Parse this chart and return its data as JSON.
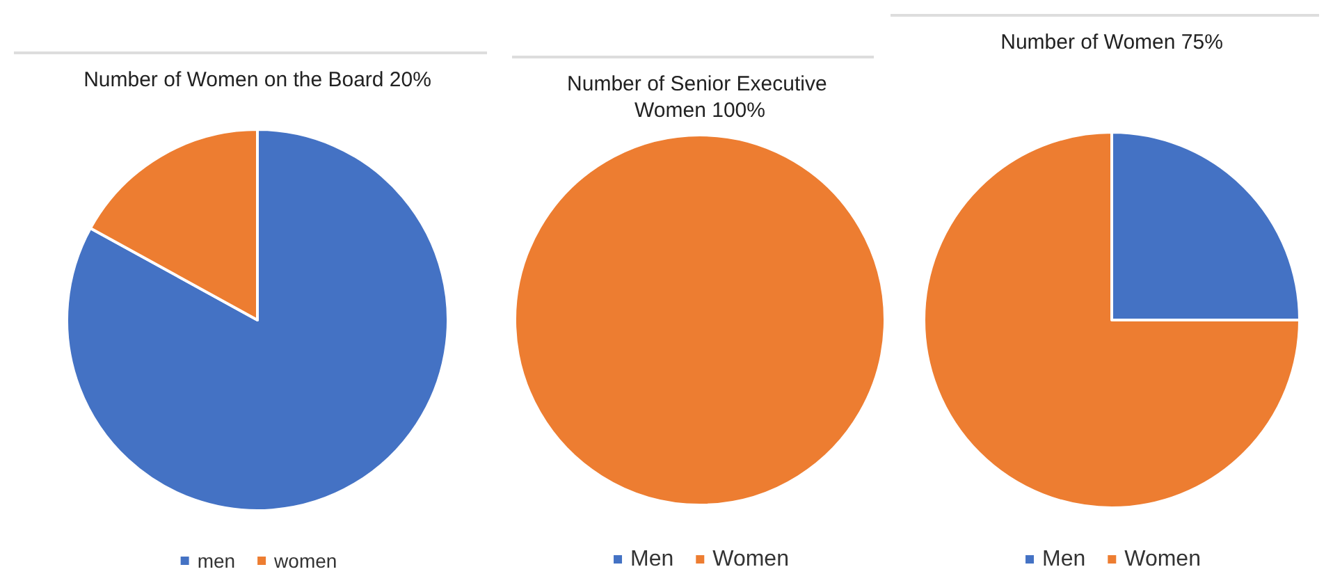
{
  "chart_data": [
    {
      "type": "pie",
      "title": "Number of Women on the Board 20%",
      "categories": [
        "men",
        "women"
      ],
      "values": [
        83,
        17
      ],
      "colors": [
        "#4472c4",
        "#ed7d31"
      ],
      "legend": "bottom"
    },
    {
      "type": "pie",
      "title": "Number of Senior Executive Women 100%",
      "categories": [
        "Men",
        "Women"
      ],
      "values": [
        0,
        100
      ],
      "colors": [
        "#4472c4",
        "#ed7d31"
      ],
      "legend": "bottom"
    },
    {
      "type": "pie",
      "title": "Number of Women 75%",
      "categories": [
        "Men",
        "Women"
      ],
      "values": [
        25,
        75
      ],
      "colors": [
        "#4472c4",
        "#ed7d31"
      ],
      "legend": "bottom"
    }
  ]
}
